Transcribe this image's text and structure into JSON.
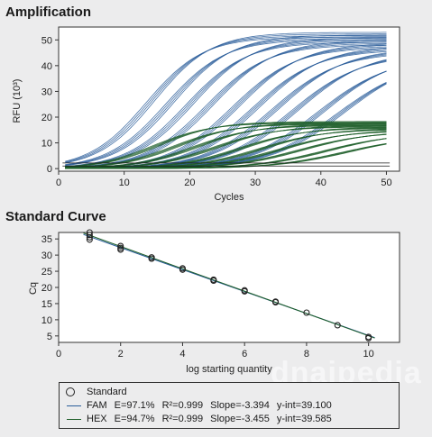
{
  "amplification": {
    "title": "Amplification"
  },
  "standard_curve": {
    "title": "Standard Curve"
  },
  "legend": {
    "standard_label": "Standard",
    "fam": {
      "name": "FAM",
      "efficiency": "E=97.1%",
      "r2": "R²=0.999",
      "slope": "Slope=-3.394",
      "yint": "y-int=39.100"
    },
    "hex": {
      "name": "HEX",
      "efficiency": "E=94.7%",
      "r2": "R²=0.999",
      "slope": "Slope=-3.455",
      "yint": "y-int=39.585"
    }
  },
  "watermark": "dnaipedia",
  "colors": {
    "fam": "#2a5d9a",
    "hex": "#1f5f2a",
    "standard": "#222222"
  },
  "chart_data": [
    {
      "type": "line",
      "title": "Amplification",
      "xlabel": "Cycles",
      "ylabel": "RFU (10³)",
      "xlim": [
        0,
        52
      ],
      "ylim": [
        -1,
        55
      ],
      "xticks": [
        0,
        10,
        20,
        30,
        40,
        50
      ],
      "yticks": [
        0,
        10,
        20,
        30,
        40,
        50
      ],
      "series": [
        {
          "name": "FAM",
          "color": "#2a5d9a",
          "plateau": [
            52,
            51,
            50,
            49,
            48,
            47,
            46,
            45,
            44,
            43
          ],
          "midpoints": [
            14,
            17,
            20,
            23,
            27,
            30,
            33,
            36,
            40,
            43
          ],
          "replicates": 4
        },
        {
          "name": "HEX",
          "color": "#1f5f2a",
          "plateau": [
            18,
            17.5,
            17,
            16.5,
            16,
            15.5,
            15,
            14.5,
            14,
            13
          ],
          "midpoints": [
            15,
            18,
            21,
            24,
            28,
            31,
            34,
            37,
            41,
            44
          ],
          "replicates": 4
        }
      ]
    },
    {
      "type": "scatter",
      "title": "Standard Curve",
      "xlabel": "log starting quantity",
      "ylabel": "Cq",
      "xlim": [
        0,
        11
      ],
      "ylim": [
        3,
        37
      ],
      "xticks": [
        0,
        2,
        4,
        6,
        8,
        10
      ],
      "yticks": [
        5,
        10,
        15,
        20,
        25,
        30,
        35
      ],
      "series": [
        {
          "name": "Standard",
          "marker": "circle",
          "x": [
            1,
            1,
            1,
            1,
            2,
            2,
            2,
            3,
            3,
            4,
            4,
            5,
            5,
            6,
            6,
            7,
            7,
            8,
            9,
            10,
            10
          ],
          "y": [
            37,
            36.2,
            35.5,
            34.8,
            32.8,
            32.2,
            31.7,
            29.3,
            28.9,
            25.9,
            25.5,
            22.4,
            22.1,
            19.1,
            18.8,
            15.6,
            15.4,
            12.2,
            8.3,
            4.7,
            4.3
          ]
        },
        {
          "name": "FAM",
          "type": "line",
          "slope": -3.394,
          "intercept": 39.1,
          "color": "#2a5d9a"
        },
        {
          "name": "HEX",
          "type": "line",
          "slope": -3.455,
          "intercept": 39.585,
          "color": "#1f5f2a"
        }
      ]
    }
  ]
}
